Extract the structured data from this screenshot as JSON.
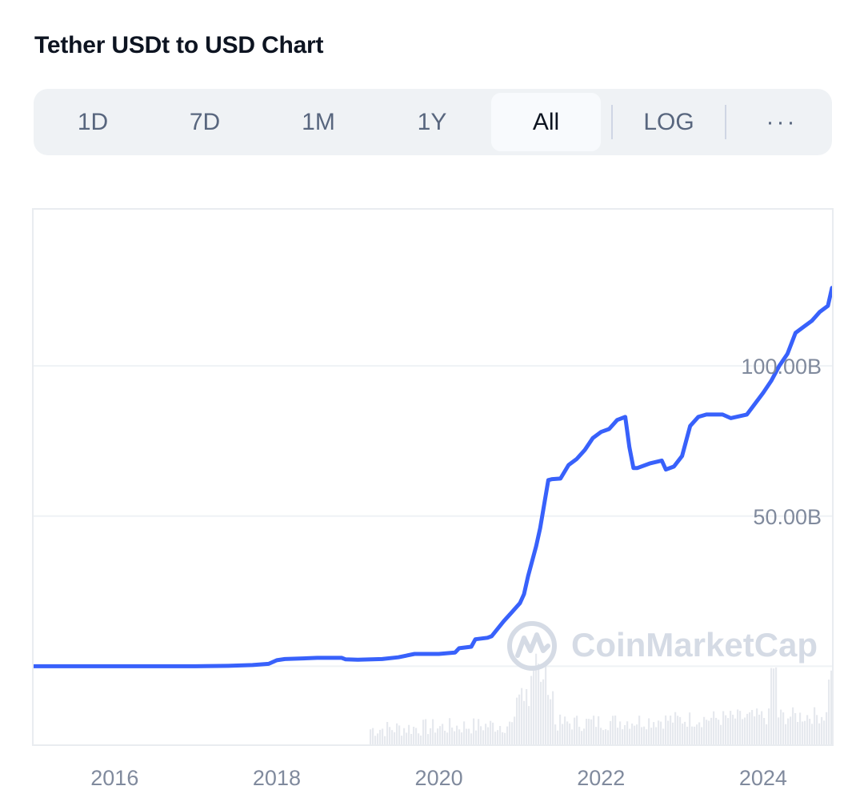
{
  "header": {
    "title": "Tether USDt to USD Chart"
  },
  "range_selector": {
    "options": [
      "1D",
      "7D",
      "1M",
      "1Y",
      "All"
    ],
    "active": "All",
    "log_label": "LOG",
    "more_label": "···"
  },
  "watermark": {
    "text": "CoinMarketCap"
  },
  "colors": {
    "line": "#3861fb",
    "grid": "#eff2f5",
    "label": "#808a9d",
    "volume": "#e6e9ee",
    "watermark": "#d5dbe5"
  },
  "chart_data": {
    "type": "line",
    "title": "Tether USDt to USD Chart",
    "yunit": "B",
    "ylim": [
      -26,
      152
    ],
    "y_ticks": [
      50,
      100
    ],
    "y_tick_labels": [
      "50.00B",
      "100.00B"
    ],
    "xlim": [
      2015.0,
      2024.85
    ],
    "x_ticks": [
      2016,
      2018,
      2020,
      2022,
      2024
    ],
    "x_tick_labels": [
      "2016",
      "2018",
      "2020",
      "2022",
      "2024"
    ],
    "series": [
      {
        "x": [
          2015.0,
          2016.0,
          2017.0,
          2017.4,
          2017.7,
          2017.9,
          2018.0,
          2018.1,
          2018.5,
          2018.8,
          2018.85,
          2019.0,
          2019.3,
          2019.5,
          2019.7,
          2020.0,
          2020.2,
          2020.25,
          2020.4,
          2020.45,
          2020.6,
          2020.65,
          2020.8,
          2020.9,
          2021.0,
          2021.05,
          2021.1,
          2021.2,
          2021.25,
          2021.35,
          2021.4,
          2021.5,
          2021.6,
          2021.7,
          2021.8,
          2021.9,
          2022.0,
          2022.1,
          2022.2,
          2022.3,
          2022.35,
          2022.4,
          2022.45,
          2022.6,
          2022.75,
          2022.8,
          2022.9,
          2023.0,
          2023.1,
          2023.2,
          2023.3,
          2023.5,
          2023.6,
          2023.8,
          2024.0,
          2024.1,
          2024.2,
          2024.3,
          2024.4,
          2024.5,
          2024.6,
          2024.7,
          2024.8,
          2024.85
        ],
        "y": [
          0.0,
          0.01,
          0.02,
          0.15,
          0.4,
          0.8,
          2.0,
          2.4,
          2.8,
          2.8,
          2.3,
          2.2,
          2.4,
          3.0,
          4.1,
          4.1,
          4.6,
          6.0,
          6.5,
          9.0,
          9.5,
          10.0,
          15.0,
          18.0,
          21.0,
          24.0,
          30.0,
          40.0,
          46.0,
          62.0,
          62.3,
          62.5,
          67.0,
          69.0,
          72.0,
          76.0,
          78.0,
          79.0,
          82.0,
          83.0,
          73.0,
          66.0,
          66.0,
          67.5,
          68.5,
          65.5,
          66.5,
          70.0,
          80.0,
          83.0,
          83.8,
          83.8,
          82.6,
          83.8,
          91.0,
          95.0,
          100.0,
          104.0,
          111.0,
          113.0,
          115.0,
          118.0,
          120.0,
          126.0
        ]
      }
    ],
    "volume_shown": true,
    "grid": true
  }
}
